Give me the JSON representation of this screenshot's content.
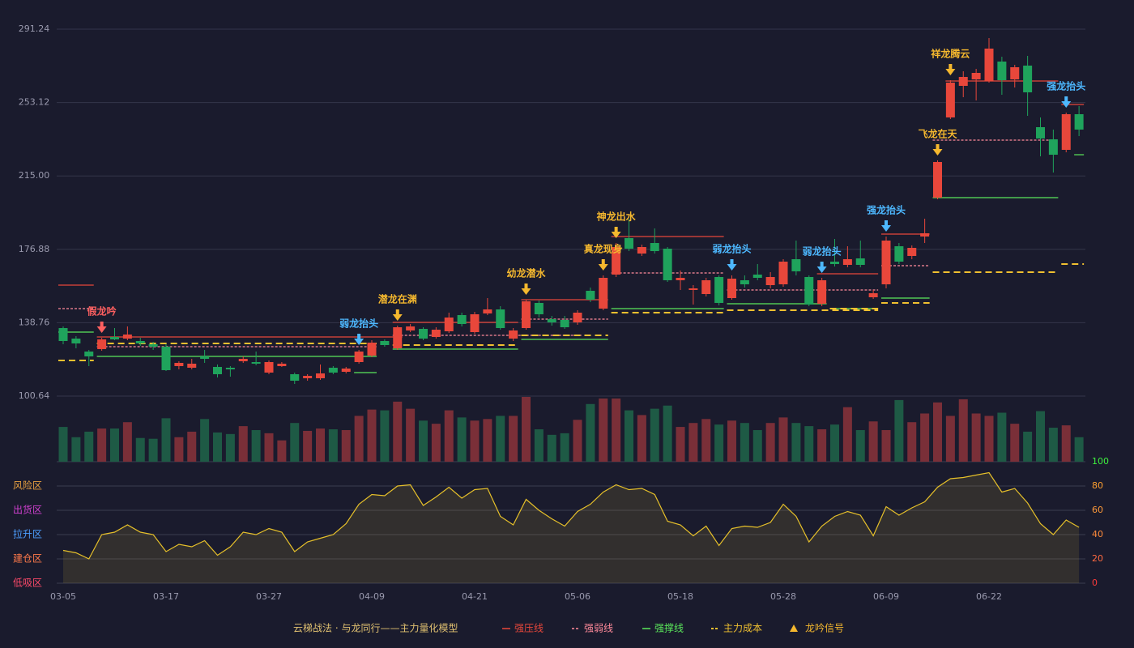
{
  "chart_data": {
    "type": "candlestick",
    "categories": [
      "03-05",
      null,
      null,
      null,
      null,
      null,
      null,
      null,
      "03-17",
      null,
      null,
      null,
      null,
      null,
      null,
      null,
      "03-27",
      null,
      null,
      null,
      null,
      null,
      null,
      null,
      "04-09",
      null,
      null,
      null,
      null,
      null,
      null,
      null,
      "04-21",
      null,
      null,
      null,
      null,
      null,
      null,
      null,
      "05-06",
      null,
      null,
      null,
      null,
      null,
      null,
      null,
      "05-18",
      null,
      null,
      null,
      null,
      null,
      null,
      null,
      "05-28",
      null,
      null,
      null,
      null,
      null,
      null,
      null,
      "06-09",
      null,
      null,
      null,
      null,
      null,
      null,
      null,
      "06-22",
      null,
      null,
      null,
      null,
      null,
      null,
      null
    ],
    "open": [
      135.98,
      130.51,
      123.78,
      125.04,
      131.35,
      130.51,
      129.25,
      127.57,
      126.31,
      116.21,
      115.37,
      121.26,
      115.79,
      115.37,
      118.73,
      118.31,
      112.84,
      116.21,
      112.0,
      109.9,
      109.9,
      115.37,
      113.26,
      118.31,
      121.68,
      129.25,
      125.46,
      134.72,
      135.56,
      131.35,
      134.3,
      142.72,
      133.88,
      143.56,
      145.66,
      130.51,
      135.98,
      149.03,
      140.61,
      140.19,
      138.93,
      155.34,
      146.08,
      163.75,
      182.69,
      174.69,
      180.16,
      177.22,
      160.81,
      155.76,
      153.65,
      162.49,
      151.55,
      160.81,
      163.75,
      158.28,
      158.7,
      171.75,
      162.49,
      148.61,
      170.48,
      168.8,
      172.17,
      151.97,
      158.7,
      178.48,
      173.43,
      183.53,
      203.72,
      245.38,
      261.79,
      265.15,
      264.31,
      274.41,
      265.15,
      272.31,
      240.33,
      234.02,
      228.55,
      247.06
    ],
    "high": [
      136.82,
      131.78,
      124.62,
      130.93,
      135.98,
      136.82,
      130.93,
      128.83,
      127.57,
      118.73,
      119.99,
      124.62,
      117.05,
      116.21,
      121.26,
      123.78,
      119.15,
      118.31,
      112.84,
      112.0,
      117.05,
      116.21,
      115.79,
      124.62,
      129.67,
      130.09,
      137.25,
      138.09,
      136.4,
      136.4,
      143.98,
      143.98,
      144.4,
      151.55,
      147.34,
      135.98,
      150.71,
      150.29,
      142.29,
      142.29,
      145.24,
      157.02,
      163.33,
      180.16,
      192.78,
      179.32,
      187.74,
      178.06,
      165.86,
      158.28,
      162.07,
      163.33,
      163.33,
      163.33,
      169.22,
      165.01,
      171.75,
      181.42,
      163.33,
      162.07,
      182.27,
      178.48,
      181.42,
      155.76,
      183.53,
      180.16,
      178.9,
      192.78,
      223.08,
      264.73,
      269.36,
      270.62,
      286.61,
      276.93,
      272.73,
      277.36,
      245.38,
      239.07,
      247.9,
      251.27
    ],
    "low": [
      127.57,
      125.46,
      116.21,
      124.2,
      129.67,
      129.67,
      126.73,
      124.62,
      113.68,
      114.52,
      114.52,
      117.89,
      110.32,
      110.74,
      117.89,
      116.63,
      112.0,
      115.79,
      106.95,
      108.63,
      109.06,
      112.0,
      112.42,
      117.47,
      120.84,
      126.31,
      124.62,
      133.88,
      129.67,
      130.51,
      133.46,
      136.82,
      133.04,
      142.72,
      135.14,
      129.25,
      135.14,
      141.45,
      137.25,
      135.56,
      137.67,
      149.45,
      145.24,
      162.49,
      175.95,
      173.43,
      174.69,
      159.97,
      155.76,
      148.18,
      152.39,
      147.76,
      150.71,
      157.02,
      160.81,
      156.6,
      157.44,
      163.33,
      147.34,
      147.34,
      167.96,
      167.54,
      167.54,
      151.13,
      156.6,
      169.22,
      171.75,
      180.16,
      202.88,
      244.54,
      255.9,
      254.21,
      263.47,
      257.16,
      260.95,
      246.22,
      225.18,
      216.77,
      227.29,
      235.7
    ],
    "close": [
      129.25,
      127.99,
      121.26,
      130.09,
      130.09,
      132.62,
      127.99,
      126.31,
      114.1,
      117.89,
      117.47,
      119.99,
      112.0,
      114.52,
      119.99,
      117.47,
      118.31,
      117.47,
      108.63,
      111.16,
      112.42,
      112.84,
      114.95,
      123.78,
      128.41,
      127.15,
      136.4,
      136.82,
      130.51,
      135.14,
      141.45,
      138.09,
      143.14,
      145.66,
      135.98,
      134.72,
      149.87,
      143.14,
      138.93,
      136.4,
      143.98,
      150.71,
      162.07,
      178.06,
      177.22,
      178.06,
      175.95,
      160.81,
      162.07,
      156.6,
      160.81,
      149.03,
      161.65,
      158.7,
      162.07,
      162.49,
      170.48,
      165.44,
      148.18,
      160.81,
      169.22,
      171.75,
      168.8,
      154.08,
      181.42,
      170.48,
      177.64,
      185.21,
      222.24,
      263.47,
      266.42,
      268.52,
      281.14,
      264.73,
      271.46,
      258.42,
      234.44,
      226.02,
      247.06,
      239.07
    ],
    "up_color": "#e8473b",
    "down_color": "#1fa35c",
    "ylim": [
      100.64,
      291.24
    ],
    "yticks": [
      100.64,
      138.76,
      176.88,
      {
        "value": 215,
        "label": "215.00"
      },
      253.12,
      291.24
    ],
    "grid": true,
    "volume": {
      "values": [
        44,
        31,
        38,
        42,
        42,
        50,
        30,
        29,
        55,
        31,
        38,
        54,
        37,
        35,
        45,
        40,
        36,
        27,
        49,
        39,
        42,
        41,
        40,
        58,
        66,
        65,
        76,
        67,
        52,
        48,
        65,
        56,
        52,
        54,
        58,
        58,
        82,
        41,
        34,
        36,
        53,
        73,
        80,
        80,
        65,
        59,
        67,
        71,
        44,
        49,
        54,
        47,
        52,
        49,
        40,
        49,
        56,
        49,
        45,
        41,
        47,
        69,
        40,
        51,
        40,
        78,
        50,
        61,
        75,
        58,
        79,
        61,
        58,
        62,
        48,
        38,
        64,
        43,
        46,
        31
      ],
      "up_color": "#7a2f38",
      "down_color": "#1e5a45"
    },
    "indicator": {
      "values": [
        27,
        25,
        20,
        40,
        42,
        48,
        42,
        40,
        26,
        32,
        30,
        35,
        23,
        30,
        42,
        40,
        45,
        42,
        26,
        34,
        37,
        40,
        49,
        65,
        73,
        72,
        80,
        81,
        64,
        71,
        79,
        70,
        77,
        78,
        55,
        48,
        69,
        60,
        53,
        47,
        59,
        65,
        75,
        81,
        77,
        78,
        73,
        51,
        48,
        39,
        47,
        31,
        45,
        47,
        46,
        50,
        65,
        55,
        34,
        47,
        55,
        59,
        56,
        39,
        63,
        56,
        62,
        67,
        79,
        86,
        87,
        89,
        91,
        75,
        78,
        66,
        49,
        40,
        52,
        46
      ],
      "color": "#e6c02a",
      "ylim": [
        0,
        100
      ],
      "yticks": [
        0,
        20,
        40,
        60,
        80,
        100
      ],
      "zones": [
        {
          "label": "风险区",
          "value": 80,
          "color": "#e8a040"
        },
        {
          "label": "出货区",
          "value": 60,
          "color": "#d040d0"
        },
        {
          "label": "拉升区",
          "value": 40,
          "color": "#4d9fff"
        },
        {
          "label": "建仓区",
          "value": 20,
          "color": "#ff7a4a"
        },
        {
          "label": "低吸区",
          "value": 0,
          "color": "#ff4a6a"
        }
      ]
    },
    "lines": [
      {
        "name": "强压线",
        "color": "#e8473b",
        "dash": false,
        "segments": [
          {
            "start": 0,
            "end": 2,
            "value": 158.28
          },
          {
            "start": 3,
            "end": 26,
            "value": 131.35
          },
          {
            "start": 26,
            "end": 35,
            "value": 138.93
          },
          {
            "start": 36,
            "end": 42,
            "value": 150.71
          },
          {
            "start": 43,
            "end": 51,
            "value": 183.53
          },
          {
            "start": 59,
            "end": 63,
            "value": 164.17
          },
          {
            "start": 64,
            "end": 67,
            "value": 184.79
          },
          {
            "start": 69,
            "end": 77,
            "value": 264.31
          },
          {
            "start": 78,
            "end": 79,
            "value": 252.11
          }
        ]
      },
      {
        "name": "强弱线",
        "color": "#ff8a9a",
        "dash": true,
        "segments": [
          {
            "start": 0,
            "end": 2,
            "value": 146.08
          },
          {
            "start": 3,
            "end": 24,
            "value": 126.31
          },
          {
            "start": 26,
            "end": 40,
            "value": 132.2
          },
          {
            "start": 36,
            "end": 42,
            "value": 140.61
          },
          {
            "start": 43,
            "end": 51,
            "value": 164.59
          },
          {
            "start": 52,
            "end": 63,
            "value": 155.76
          },
          {
            "start": 64,
            "end": 67,
            "value": 168.38
          },
          {
            "start": 68,
            "end": 77,
            "value": 233.6
          }
        ]
      },
      {
        "name": "强撑线",
        "color": "#5be85b",
        "dash": false,
        "segments": [
          {
            "start": 0,
            "end": 2,
            "value": 133.88
          },
          {
            "start": 3,
            "end": 24,
            "value": 121.26
          },
          {
            "start": 23,
            "end": 24,
            "value": 112.84
          },
          {
            "start": 26,
            "end": 35,
            "value": 125.04
          },
          {
            "start": 36,
            "end": 42,
            "value": 130.09
          },
          {
            "start": 43,
            "end": 51,
            "value": 146.08
          },
          {
            "start": 52,
            "end": 59,
            "value": 148.61
          },
          {
            "start": 60,
            "end": 63,
            "value": 146.08
          },
          {
            "start": 64,
            "end": 67,
            "value": 151.55
          },
          {
            "start": 68,
            "end": 77,
            "value": 203.72
          },
          {
            "start": 79,
            "end": 79,
            "value": 226.02
          }
        ]
      },
      {
        "name": "主力成本",
        "color": "#f0c030",
        "dash": true,
        "segments": [
          {
            "start": 0,
            "end": 2,
            "value": 119.15
          },
          {
            "start": 3,
            "end": 24,
            "value": 127.99
          },
          {
            "start": 26,
            "end": 35,
            "value": 127.15
          },
          {
            "start": 36,
            "end": 42,
            "value": 132.2
          },
          {
            "start": 43,
            "end": 51,
            "value": 143.98
          },
          {
            "start": 52,
            "end": 63,
            "value": 145.24
          },
          {
            "start": 60,
            "end": 63,
            "value": 146.08
          },
          {
            "start": 64,
            "end": 67,
            "value": 149.03
          },
          {
            "start": 68,
            "end": 77,
            "value": 165.01
          },
          {
            "start": 78,
            "end": 79,
            "value": 169.22
          }
        ]
      }
    ],
    "signals": [
      {
        "index": 3,
        "label": "假龙吟",
        "color": "#ff6060"
      },
      {
        "index": 23,
        "label": "弱龙抬头",
        "color": "#4db8ff"
      },
      {
        "index": 26,
        "label": "潜龙在渊",
        "color": "#f5b82e"
      },
      {
        "index": 36,
        "label": "幼龙潜水",
        "color": "#f5b82e"
      },
      {
        "index": 42,
        "label": "真龙现身",
        "color": "#f5b82e"
      },
      {
        "index": 43,
        "label": "神龙出水",
        "color": "#f5b82e"
      },
      {
        "index": 52,
        "label": "弱龙抬头",
        "color": "#4db8ff"
      },
      {
        "index": 59,
        "label": "弱龙抬头",
        "color": "#4db8ff"
      },
      {
        "index": 64,
        "label": "强龙抬头",
        "color": "#4db8ff"
      },
      {
        "index": 68,
        "label": "飞龙在天",
        "color": "#f5b82e"
      },
      {
        "index": 69,
        "label": "祥龙腾云",
        "color": "#f5b82e"
      },
      {
        "index": 78,
        "label": "强龙抬头",
        "color": "#4db8ff"
      }
    ],
    "legend_title": "云梯战法 · 与龙同行——主力量化模型",
    "signal_legend": "龙吟信号"
  }
}
